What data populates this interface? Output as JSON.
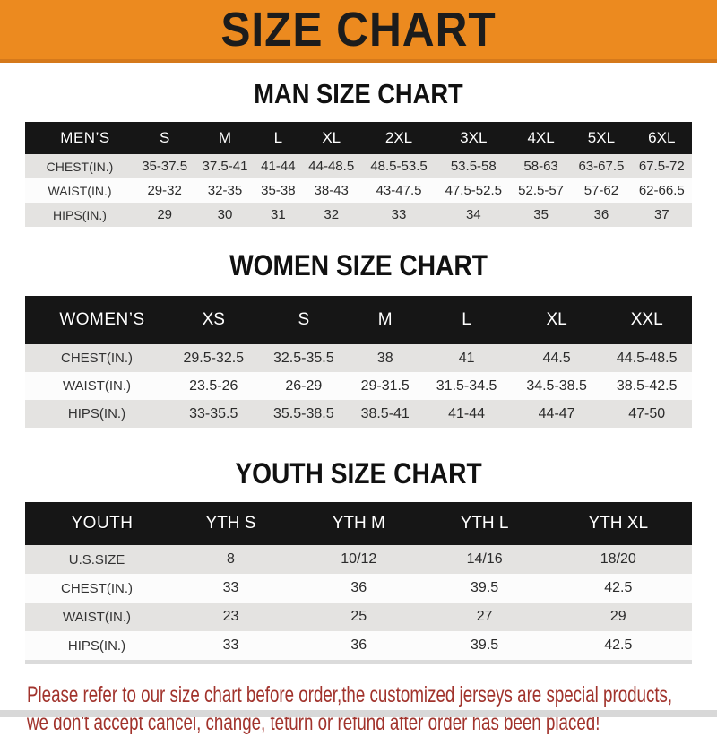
{
  "banner": {
    "title": "SIZE CHART"
  },
  "colors": {
    "banner_bg": "#ec8a1f",
    "banner_edge": "#d5791b",
    "header_bar_bg": "#161616",
    "header_bar_text": "#ffffff",
    "row_gray": "#e4e3e1",
    "row_white": "#fcfcfc",
    "notice_red": "#a1332c"
  },
  "sections": [
    {
      "title": "MAN SIZE CHART",
      "header_label": "MEN’S",
      "columns": [
        "S",
        "M",
        "L",
        "XL",
        "2XL",
        "3XL",
        "4XL",
        "5XL",
        "6XL"
      ],
      "rows": [
        {
          "label": "CHEST(IN.)",
          "values": [
            "35-37.5",
            "37.5-41",
            "41-44",
            "44-48.5",
            "48.5-53.5",
            "53.5-58",
            "58-63",
            "63-67.5",
            "67.5-72"
          ]
        },
        {
          "label": "WAIST(IN.)",
          "values": [
            "29-32",
            "32-35",
            "35-38",
            "38-43",
            "43-47.5",
            "47.5-52.5",
            "52.5-57",
            "57-62",
            "62-66.5"
          ]
        },
        {
          "label": "HIPS(IN.)",
          "values": [
            "29",
            "30",
            "31",
            "32",
            "33",
            "34",
            "35",
            "36",
            "37"
          ]
        }
      ]
    },
    {
      "title": "WOMEN SIZE CHART",
      "header_label": "WOMEN’S",
      "columns": [
        "XS",
        "S",
        "M",
        "L",
        "XL",
        "XXL"
      ],
      "rows": [
        {
          "label": "CHEST(IN.)",
          "values": [
            "29.5-32.5",
            "32.5-35.5",
            "38",
            "41",
            "44.5",
            "44.5-48.5"
          ]
        },
        {
          "label": "WAIST(IN.)",
          "values": [
            "23.5-26",
            "26-29",
            "29-31.5",
            "31.5-34.5",
            "34.5-38.5",
            "38.5-42.5"
          ]
        },
        {
          "label": "HIPS(IN.)",
          "values": [
            "33-35.5",
            "35.5-38.5",
            "38.5-41",
            "41-44",
            "44-47",
            "47-50"
          ]
        }
      ]
    },
    {
      "title": "YOUTH SIZE CHART",
      "header_label": "YOUTH",
      "columns": [
        "YTH S",
        "YTH M",
        "YTH L",
        "YTH XL"
      ],
      "rows": [
        {
          "label": "U.S.SIZE",
          "values": [
            "8",
            "10/12",
            "14/16",
            "18/20"
          ]
        },
        {
          "label": "CHEST(IN.)",
          "values": [
            "33",
            "36",
            "39.5",
            "42.5"
          ]
        },
        {
          "label": "WAIST(IN.)",
          "values": [
            "23",
            "25",
            "27",
            "29"
          ]
        },
        {
          "label": "HIPS(IN.)",
          "values": [
            "33",
            "36",
            "39.5",
            "42.5"
          ]
        }
      ]
    }
  ],
  "notice": {
    "line1": "Please refer to our size chart before order,the customized jerseys are special products,",
    "line2": "we don't accept cancel, change, teturn or refund after order has been placed!"
  }
}
